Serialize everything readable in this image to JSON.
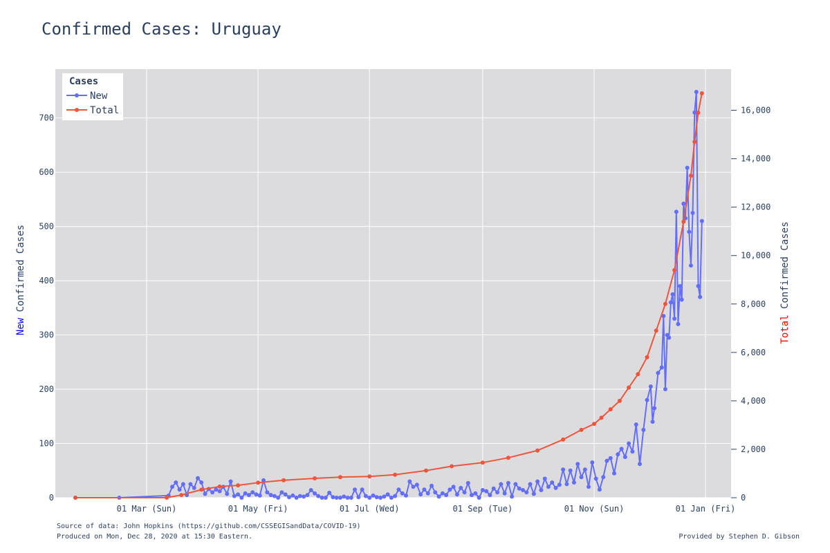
{
  "chart_data": {
    "type": "line",
    "title": "Confirmed Cases: Uruguay",
    "x_tick_labels": [
      "01 Mar (Sun)",
      "01 May (Fri)",
      "01 Jul (Wed)",
      "01 Sep (Tue)",
      "01 Nov (Sun)",
      "01 Jan (Fri)"
    ],
    "x_tick_dates": [
      "2020-03-01",
      "2020-05-01",
      "2020-07-01",
      "2020-09-01",
      "2020-11-01",
      "2021-01-01"
    ],
    "x_range": [
      "2020-01-11",
      "2021-01-15"
    ],
    "y_left": {
      "label_parts": [
        {
          "text": "New",
          "color": "#0000ff"
        },
        {
          "text": " Confirmed Cases",
          "color": "#2a3f5f"
        }
      ],
      "range": [
        0,
        790
      ],
      "ticks": [
        0,
        100,
        200,
        300,
        400,
        500,
        600,
        700
      ],
      "tick_labels": [
        "0",
        "100",
        "200",
        "300",
        "400",
        "500",
        "600",
        "700"
      ]
    },
    "y_right": {
      "label_parts": [
        {
          "text": "Total",
          "color": "#ff0000"
        },
        {
          "text": " Confirmed Cases",
          "color": "#2a3f5f"
        }
      ],
      "range": [
        0,
        17700
      ],
      "ticks": [
        0,
        2000,
        4000,
        6000,
        8000,
        10000,
        12000,
        14000,
        16000
      ],
      "tick_labels": [
        "0",
        "2,000",
        "4,000",
        "6,000",
        "8,000",
        "10,000",
        "12,000",
        "14,000",
        "16,000"
      ]
    },
    "grid": true,
    "legend": {
      "title": "Cases",
      "position": "top-left"
    },
    "series": [
      {
        "name": "New",
        "axis": "left",
        "color": "#636efa",
        "points": [
          [
            "2020-01-22",
            0
          ],
          [
            "2020-02-15",
            0
          ],
          [
            "2020-03-13",
            4
          ],
          [
            "2020-03-15",
            20
          ],
          [
            "2020-03-17",
            28
          ],
          [
            "2020-03-19",
            15
          ],
          [
            "2020-03-21",
            25
          ],
          [
            "2020-03-23",
            5
          ],
          [
            "2020-03-25",
            25
          ],
          [
            "2020-03-27",
            18
          ],
          [
            "2020-03-29",
            36
          ],
          [
            "2020-03-31",
            28
          ],
          [
            "2020-04-02",
            7
          ],
          [
            "2020-04-04",
            16
          ],
          [
            "2020-04-06",
            10
          ],
          [
            "2020-04-08",
            15
          ],
          [
            "2020-04-10",
            12
          ],
          [
            "2020-04-12",
            20
          ],
          [
            "2020-04-14",
            7
          ],
          [
            "2020-04-16",
            30
          ],
          [
            "2020-04-18",
            3
          ],
          [
            "2020-04-20",
            6
          ],
          [
            "2020-04-22",
            0
          ],
          [
            "2020-04-24",
            8
          ],
          [
            "2020-04-26",
            5
          ],
          [
            "2020-04-28",
            10
          ],
          [
            "2020-04-30",
            6
          ],
          [
            "2020-05-02",
            4
          ],
          [
            "2020-05-04",
            32
          ],
          [
            "2020-05-06",
            10
          ],
          [
            "2020-05-08",
            5
          ],
          [
            "2020-05-10",
            3
          ],
          [
            "2020-05-12",
            0
          ],
          [
            "2020-05-14",
            10
          ],
          [
            "2020-05-16",
            6
          ],
          [
            "2020-05-18",
            1
          ],
          [
            "2020-05-20",
            4
          ],
          [
            "2020-05-22",
            0
          ],
          [
            "2020-05-24",
            3
          ],
          [
            "2020-05-26",
            2
          ],
          [
            "2020-05-28",
            5
          ],
          [
            "2020-05-30",
            14
          ],
          [
            "2020-06-01",
            8
          ],
          [
            "2020-06-03",
            3
          ],
          [
            "2020-06-05",
            0
          ],
          [
            "2020-06-07",
            0
          ],
          [
            "2020-06-09",
            9
          ],
          [
            "2020-06-11",
            1
          ],
          [
            "2020-06-13",
            0
          ],
          [
            "2020-06-15",
            0
          ],
          [
            "2020-06-17",
            2
          ],
          [
            "2020-06-19",
            0
          ],
          [
            "2020-06-21",
            0
          ],
          [
            "2020-06-23",
            15
          ],
          [
            "2020-06-25",
            1
          ],
          [
            "2020-06-27",
            15
          ],
          [
            "2020-06-29",
            3
          ],
          [
            "2020-07-01",
            0
          ],
          [
            "2020-07-03",
            4
          ],
          [
            "2020-07-05",
            1
          ],
          [
            "2020-07-07",
            0
          ],
          [
            "2020-07-09",
            2
          ],
          [
            "2020-07-11",
            6
          ],
          [
            "2020-07-13",
            0
          ],
          [
            "2020-07-15",
            3
          ],
          [
            "2020-07-17",
            15
          ],
          [
            "2020-07-19",
            8
          ],
          [
            "2020-07-21",
            4
          ],
          [
            "2020-07-23",
            30
          ],
          [
            "2020-07-25",
            20
          ],
          [
            "2020-07-27",
            24
          ],
          [
            "2020-07-29",
            6
          ],
          [
            "2020-07-31",
            15
          ],
          [
            "2020-08-02",
            8
          ],
          [
            "2020-08-04",
            22
          ],
          [
            "2020-08-06",
            10
          ],
          [
            "2020-08-08",
            2
          ],
          [
            "2020-08-10",
            8
          ],
          [
            "2020-08-12",
            5
          ],
          [
            "2020-08-14",
            15
          ],
          [
            "2020-08-16",
            20
          ],
          [
            "2020-08-18",
            6
          ],
          [
            "2020-08-20",
            18
          ],
          [
            "2020-08-22",
            10
          ],
          [
            "2020-08-24",
            27
          ],
          [
            "2020-08-26",
            5
          ],
          [
            "2020-08-28",
            8
          ],
          [
            "2020-08-30",
            0
          ],
          [
            "2020-09-01",
            14
          ],
          [
            "2020-09-03",
            12
          ],
          [
            "2020-09-05",
            5
          ],
          [
            "2020-09-07",
            17
          ],
          [
            "2020-09-09",
            10
          ],
          [
            "2020-09-11",
            25
          ],
          [
            "2020-09-13",
            8
          ],
          [
            "2020-09-15",
            27
          ],
          [
            "2020-09-17",
            2
          ],
          [
            "2020-09-19",
            25
          ],
          [
            "2020-09-21",
            17
          ],
          [
            "2020-09-23",
            14
          ],
          [
            "2020-09-25",
            10
          ],
          [
            "2020-09-27",
            25
          ],
          [
            "2020-09-29",
            7
          ],
          [
            "2020-10-01",
            30
          ],
          [
            "2020-10-03",
            14
          ],
          [
            "2020-10-05",
            35
          ],
          [
            "2020-10-07",
            20
          ],
          [
            "2020-10-09",
            28
          ],
          [
            "2020-10-11",
            18
          ],
          [
            "2020-10-13",
            24
          ],
          [
            "2020-10-15",
            52
          ],
          [
            "2020-10-17",
            25
          ],
          [
            "2020-10-19",
            50
          ],
          [
            "2020-10-21",
            28
          ],
          [
            "2020-10-23",
            62
          ],
          [
            "2020-10-25",
            38
          ],
          [
            "2020-10-27",
            52
          ],
          [
            "2020-10-29",
            20
          ],
          [
            "2020-10-31",
            65
          ],
          [
            "2020-11-02",
            35
          ],
          [
            "2020-11-04",
            15
          ],
          [
            "2020-11-06",
            38
          ],
          [
            "2020-11-08",
            68
          ],
          [
            "2020-11-10",
            73
          ],
          [
            "2020-11-12",
            45
          ],
          [
            "2020-11-14",
            80
          ],
          [
            "2020-11-16",
            90
          ],
          [
            "2020-11-18",
            75
          ],
          [
            "2020-11-20",
            100
          ],
          [
            "2020-11-22",
            85
          ],
          [
            "2020-11-24",
            135
          ],
          [
            "2020-11-26",
            62
          ],
          [
            "2020-11-28",
            125
          ],
          [
            "2020-11-30",
            180
          ],
          [
            "2020-12-02",
            205
          ],
          [
            "2020-12-03",
            140
          ],
          [
            "2020-12-04",
            165
          ],
          [
            "2020-12-06",
            230
          ],
          [
            "2020-12-08",
            240
          ],
          [
            "2020-12-09",
            335
          ],
          [
            "2020-12-10",
            200
          ],
          [
            "2020-12-11",
            300
          ],
          [
            "2020-12-12",
            295
          ],
          [
            "2020-12-13",
            360
          ],
          [
            "2020-12-14",
            375
          ],
          [
            "2020-12-15",
            330
          ],
          [
            "2020-12-16",
            527
          ],
          [
            "2020-12-17",
            320
          ],
          [
            "2020-12-18",
            390
          ],
          [
            "2020-12-19",
            365
          ],
          [
            "2020-12-20",
            542
          ],
          [
            "2020-12-21",
            515
          ],
          [
            "2020-12-22",
            608
          ],
          [
            "2020-12-23",
            490
          ],
          [
            "2020-12-24",
            428
          ],
          [
            "2020-12-25",
            525
          ],
          [
            "2020-12-26",
            710
          ],
          [
            "2020-12-27",
            748
          ],
          [
            "2020-12-28",
            390
          ],
          [
            "2020-12-29",
            370
          ],
          [
            "2020-12-30",
            510
          ]
        ]
      },
      {
        "name": "Total",
        "axis": "right",
        "color": "#ef553b",
        "points": [
          [
            "2020-01-22",
            0
          ],
          [
            "2020-03-12",
            0
          ],
          [
            "2020-03-20",
            110
          ],
          [
            "2020-03-31",
            330
          ],
          [
            "2020-04-10",
            460
          ],
          [
            "2020-04-20",
            510
          ],
          [
            "2020-05-01",
            620
          ],
          [
            "2020-05-15",
            720
          ],
          [
            "2020-06-01",
            800
          ],
          [
            "2020-06-15",
            850
          ],
          [
            "2020-07-01",
            880
          ],
          [
            "2020-07-15",
            950
          ],
          [
            "2020-08-01",
            1120
          ],
          [
            "2020-08-15",
            1300
          ],
          [
            "2020-09-01",
            1450
          ],
          [
            "2020-09-15",
            1650
          ],
          [
            "2020-10-01",
            1950
          ],
          [
            "2020-10-15",
            2400
          ],
          [
            "2020-10-25",
            2800
          ],
          [
            "2020-11-01",
            3050
          ],
          [
            "2020-11-05",
            3300
          ],
          [
            "2020-11-10",
            3650
          ],
          [
            "2020-11-15",
            4000
          ],
          [
            "2020-11-20",
            4550
          ],
          [
            "2020-11-25",
            5100
          ],
          [
            "2020-11-30",
            5800
          ],
          [
            "2020-12-05",
            6900
          ],
          [
            "2020-12-10",
            8000
          ],
          [
            "2020-12-15",
            9400
          ],
          [
            "2020-12-20",
            11400
          ],
          [
            "2020-12-24",
            13300
          ],
          [
            "2020-12-26",
            14700
          ],
          [
            "2020-12-28",
            15900
          ],
          [
            "2020-12-30",
            16700
          ]
        ]
      }
    ]
  },
  "footer": {
    "source": "Source of data: John Hopkins (https://github.com/CSSEGISandData/COVID-19)",
    "produced": "Produced on Mon, Dec 28, 2020 at 15:30 Eastern.",
    "credit": "Provided by Stephen D. Gibson"
  }
}
